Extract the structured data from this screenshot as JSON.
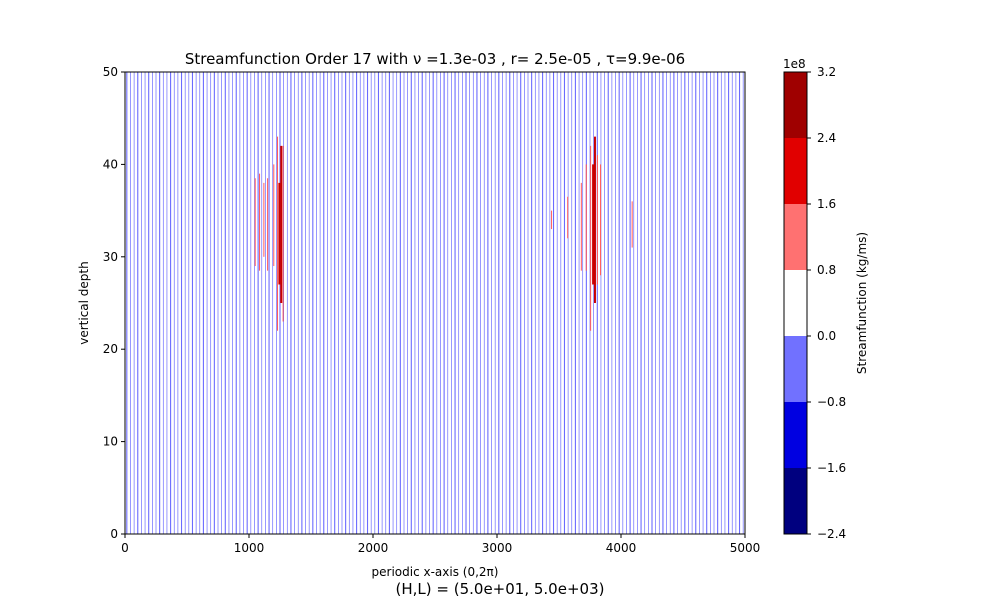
{
  "chart_data": {
    "type": "contour",
    "title": "Streamfunction Order 17 with ν =1.3e-03 , r= 2.5e-05 , τ=9.9e-06",
    "xlabel": "periodic x-axis (0,2π)",
    "ylabel": "vertical depth",
    "footer": "(H,L) = (5.0e+01, 5.0e+03)",
    "xlim": [
      0,
      5000
    ],
    "ylim": [
      0,
      50
    ],
    "xticks": [
      0,
      1000,
      2000,
      3000,
      4000,
      5000
    ],
    "xtick_labels": [
      "0",
      "1000",
      "2000",
      "3000",
      "4000",
      "5000"
    ],
    "yticks": [
      0,
      10,
      20,
      30,
      40,
      50
    ],
    "ytick_labels": [
      "0",
      "10",
      "20",
      "30",
      "40",
      "50"
    ],
    "grid": false,
    "n_vertical_lines": 170,
    "full_lines_color": "#6b6bff",
    "red_clusters": [
      {
        "center_x": 1250,
        "lines": [
          {
            "x": 1050,
            "y0": 29,
            "y1": 38.5
          },
          {
            "x": 1085,
            "y0": 28.5,
            "y1": 39
          },
          {
            "x": 1120,
            "y0": 30,
            "y1": 38
          },
          {
            "x": 1150,
            "y0": 28.5,
            "y1": 38.5
          },
          {
            "x": 1200,
            "y0": 29,
            "y1": 40
          },
          {
            "x": 1230,
            "y0": 22,
            "y1": 43
          },
          {
            "x": 1245,
            "y0": 27,
            "y1": 38,
            "dark": true
          },
          {
            "x": 1260,
            "y0": 25,
            "y1": 42,
            "dark": true
          },
          {
            "x": 1275,
            "y0": 23,
            "y1": 42
          }
        ]
      },
      {
        "center_x": 3790,
        "lines": [
          {
            "x": 3440,
            "y0": 33,
            "y1": 35
          },
          {
            "x": 3570,
            "y0": 32,
            "y1": 36.5
          },
          {
            "x": 3680,
            "y0": 28.5,
            "y1": 38
          },
          {
            "x": 3720,
            "y0": 28.5,
            "y1": 40
          },
          {
            "x": 3755,
            "y0": 22,
            "y1": 42
          },
          {
            "x": 3775,
            "y0": 27,
            "y1": 40,
            "dark": true
          },
          {
            "x": 3790,
            "y0": 25,
            "y1": 43,
            "dark": true
          },
          {
            "x": 3810,
            "y0": 27,
            "y1": 41
          },
          {
            "x": 3835,
            "y0": 28,
            "y1": 40
          },
          {
            "x": 4090,
            "y0": 31,
            "y1": 36
          }
        ]
      }
    ],
    "colorbar": {
      "label": "Streamfunction (kg/ms)",
      "exponent": "1e8",
      "levels": [
        -2.4,
        -1.6,
        -0.8,
        0.0,
        0.8,
        1.6,
        2.4,
        3.2
      ],
      "tick_labels": [
        "−2.4",
        "−1.6",
        "−0.8",
        "0.0",
        "0.8",
        "1.6",
        "2.4",
        "3.2"
      ],
      "colors": [
        "#00007f",
        "#0000e1",
        "#7171ff",
        "#ffffff",
        "#ff7171",
        "#e10000",
        "#9f0000"
      ]
    }
  }
}
